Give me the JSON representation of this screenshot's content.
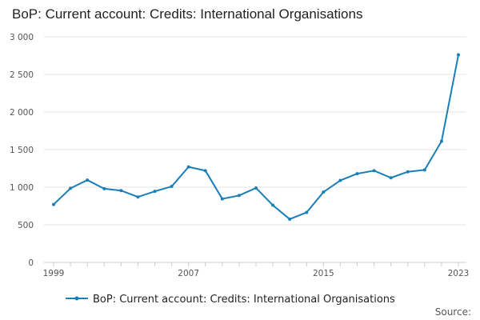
{
  "title": "BoP: Current account: Credits: International Organisations",
  "source_label": "Source:",
  "colors": {
    "series": "#1a7eb8",
    "grid": "#e6e6e6",
    "axis": "#cccccc",
    "text": "#555555"
  },
  "chart_data": {
    "type": "line",
    "title": "BoP: Current account: Credits: International Organisations",
    "xlabel": "",
    "ylabel": "",
    "ylim": [
      0,
      3000
    ],
    "yticks": [
      0,
      500,
      1000,
      1500,
      2000,
      2500,
      3000
    ],
    "ytick_labels": [
      "0",
      "500",
      "1 000",
      "1 500",
      "2 000",
      "2 500",
      "3 000"
    ],
    "xlim": [
      1999,
      2023
    ],
    "xticks": [
      1999,
      2007,
      2015,
      2023
    ],
    "xtick_labels": [
      "1999",
      "2007",
      "2015",
      "2023"
    ],
    "grid": true,
    "legend_position": "bottom",
    "x": [
      1999,
      2000,
      2001,
      2002,
      2003,
      2004,
      2005,
      2006,
      2007,
      2008,
      2009,
      2010,
      2011,
      2012,
      2013,
      2014,
      2015,
      2016,
      2017,
      2018,
      2019,
      2020,
      2021,
      2022,
      2023
    ],
    "series": [
      {
        "name": "BoP: Current account: Credits: International Organisations",
        "values": [
          770,
          985,
          1095,
          980,
          955,
          870,
          945,
          1010,
          1270,
          1220,
          845,
          890,
          990,
          760,
          575,
          665,
          935,
          1090,
          1180,
          1220,
          1125,
          1205,
          1230,
          1610,
          2760
        ]
      }
    ]
  }
}
